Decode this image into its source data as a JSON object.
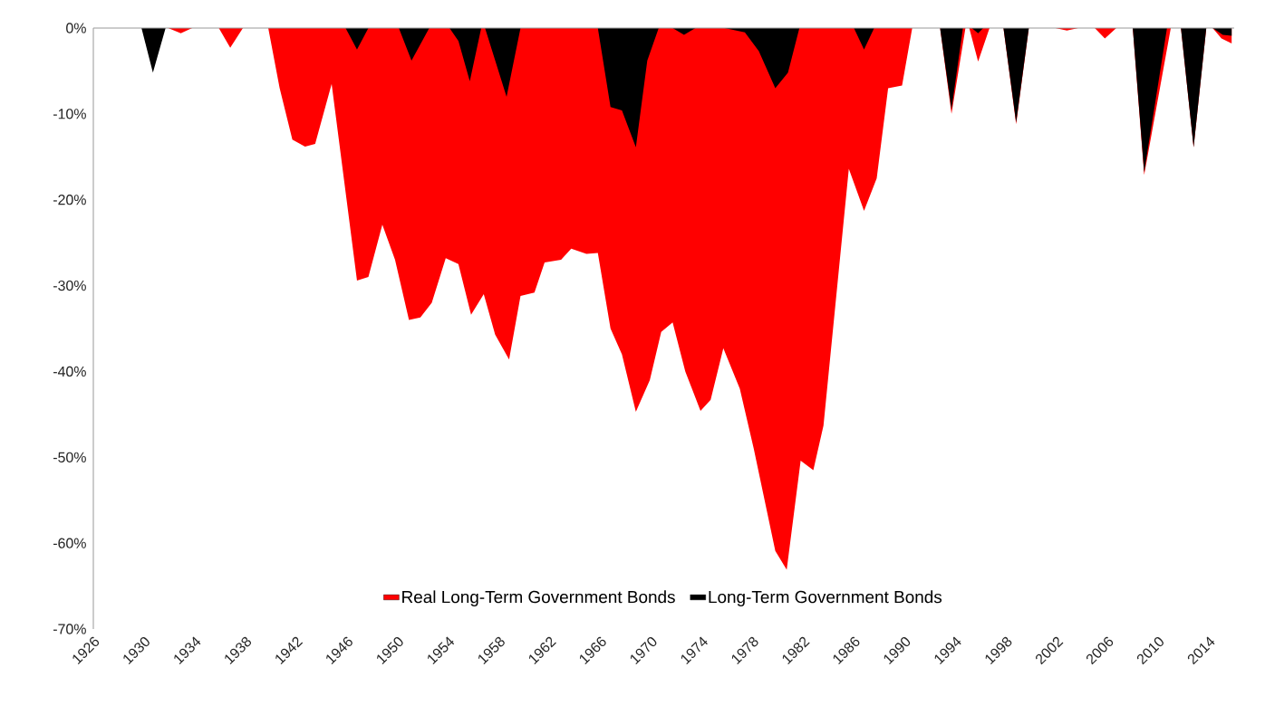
{
  "chart_data": {
    "type": "area",
    "xlim": [
      1926,
      2016
    ],
    "xticks": [
      1926,
      1930,
      1934,
      1938,
      1942,
      1946,
      1950,
      1954,
      1958,
      1962,
      1966,
      1970,
      1974,
      1978,
      1982,
      1986,
      1990,
      1994,
      1998,
      2002,
      2006,
      2010,
      2014
    ],
    "ylim": [
      -70,
      0
    ],
    "yticks": [
      {
        "value": 0,
        "label": "0%"
      },
      {
        "value": -10,
        "label": "-10%"
      },
      {
        "value": -20,
        "label": "-20%"
      },
      {
        "value": -30,
        "label": "-30%"
      },
      {
        "value": -40,
        "label": "-40%"
      },
      {
        "value": -50,
        "label": "-50%"
      },
      {
        "value": -60,
        "label": "-60%"
      },
      {
        "value": -70,
        "label": "-70%"
      }
    ],
    "legend": "bottom",
    "series": [
      {
        "name": "Real Long-Term Government Bonds",
        "color": "#ff0000",
        "x": [
          1926,
          1931.9,
          1932.9,
          1933.8,
          1935.9,
          1936.8,
          1937.8,
          1939.8,
          1940.7,
          1941.7,
          1942.7,
          1943.5,
          1944.8,
          1946.8,
          1947.7,
          1948.8,
          1949.8,
          1950.9,
          1951.8,
          1952.7,
          1953.8,
          1954.8,
          1955.8,
          1956.8,
          1957.7,
          1958.8,
          1959.7,
          1960.8,
          1961.6,
          1962.9,
          1963.7,
          1964.9,
          1965.8,
          1966.8,
          1967.7,
          1968.8,
          1969.9,
          1970.8,
          1971.7,
          1972.7,
          1973.9,
          1974.7,
          1975.7,
          1977.0,
          1978.1,
          1979.8,
          1980.7,
          1981.8,
          1982.8,
          1983.6,
          1985.6,
          1986.8,
          1987.8,
          1988.7,
          1989.8,
          1990.6,
          1992.8,
          1993.7,
          1994.8,
          1995.1,
          1995.8,
          1996.7,
          1997.8,
          1998.8,
          1999.8,
          2001.9,
          2002.8,
          2003.7,
          2005.0,
          2005.8,
          2006.7,
          2008.0,
          2008.9,
          2011.0,
          2011.8,
          2012.8,
          2013.8,
          2014.3,
          2015.0,
          2015.8
        ],
        "values": [
          0,
          0,
          -0.6,
          0,
          0,
          -2.3,
          0,
          0,
          -7,
          -13,
          -13.8,
          -13.5,
          -6.5,
          -29.4,
          -29,
          -22.9,
          -27,
          -34,
          -33.7,
          -32,
          -26.8,
          -27.5,
          -33.4,
          -31,
          -35.7,
          -38.6,
          -31.2,
          -30.8,
          -27.3,
          -27,
          -25.7,
          -26.3,
          -26.2,
          -35,
          -38,
          -44.7,
          -41,
          -35.4,
          -34.3,
          -40,
          -44.6,
          -43.3,
          -37.3,
          -42,
          -49,
          -60.9,
          -63.1,
          -50.4,
          -51.5,
          -46.3,
          -16.4,
          -21.3,
          -17.5,
          -7,
          -6.7,
          0,
          0,
          -10,
          0,
          0,
          -3.9,
          0,
          0,
          -11.2,
          0,
          0,
          -0.3,
          0,
          0,
          -1.2,
          0,
          0,
          -17.1,
          0,
          0,
          -13.9,
          0,
          0,
          -1.2,
          -1.8
        ]
      },
      {
        "name": "Long-Term Government Bonds",
        "color": "#000000",
        "x": [
          1926,
          1929.8,
          1930.7,
          1931.7,
          1945.9,
          1946.8,
          1947.7,
          1950.1,
          1951.1,
          1952.5,
          1954.1,
          1954.8,
          1955.7,
          1956.6,
          1956.9,
          1958.6,
          1959.7,
          1965.8,
          1966.8,
          1967.7,
          1968.8,
          1969.7,
          1970.6,
          1971.7,
          1972.6,
          1973.5,
          1975.8,
          1977.4,
          1978.5,
          1979.8,
          1980.8,
          1981.7,
          1986.0,
          1986.8,
          1987.6,
          1992.8,
          1993.7,
          1994.6,
          1995.3,
          1995.8,
          1996.2,
          1997.8,
          1998.8,
          1999.8,
          2008.0,
          2008.9,
          2010.7,
          2011.8,
          2012.8,
          2013.8,
          2014.3,
          2015.1,
          2015.8
        ],
        "values": [
          0,
          0,
          -5.2,
          0,
          0,
          -2.5,
          0,
          0,
          -3.8,
          0,
          0,
          -1.5,
          -6.2,
          0,
          0,
          -8,
          0,
          0,
          -9.2,
          -9.6,
          -13.9,
          -3.8,
          0,
          0,
          -0.8,
          0,
          0,
          -0.5,
          -2.7,
          -7,
          -5.2,
          0,
          0,
          -2.5,
          0,
          0,
          -9.5,
          0,
          0,
          -0.6,
          0,
          0,
          -11,
          0,
          0,
          -16.8,
          0,
          0,
          -13.9,
          0,
          0,
          -0.8,
          -0.9
        ]
      }
    ]
  }
}
